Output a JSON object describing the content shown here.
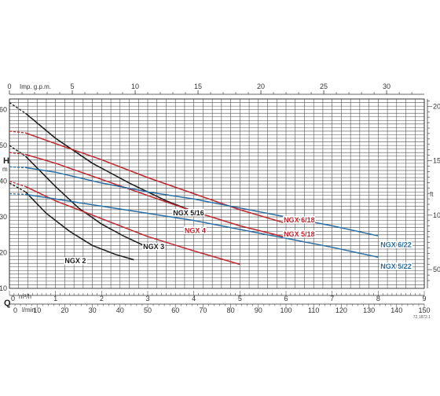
{
  "chart_data": {
    "type": "line",
    "title": "",
    "y_axis": {
      "symbol": "H",
      "unit": "m",
      "ticks": [
        10,
        20,
        30,
        40,
        50,
        60
      ],
      "range": [
        10,
        63
      ]
    },
    "y_axis_right": {
      "unit": "ft",
      "ticks": [
        50,
        100,
        150,
        200
      ]
    },
    "x_axis": {
      "symbol": "Q",
      "range_m3h": [
        0,
        9
      ],
      "m3h": {
        "unit": "m³/h",
        "ticks": [
          0,
          1,
          2,
          3,
          4,
          5,
          6,
          7,
          8,
          9
        ]
      },
      "lmin": {
        "unit": "l/min",
        "ticks": [
          0,
          10,
          20,
          30,
          40,
          50,
          60,
          70,
          80,
          90,
          100,
          110,
          120,
          130,
          140,
          150
        ]
      },
      "gpm": {
        "unit": "Imp. g.p.m.",
        "ticks": [
          0,
          5,
          10,
          15,
          20,
          25,
          30
        ]
      }
    },
    "reference_code": "72.1872.1",
    "series": [
      {
        "name": "NGX 2",
        "color": "#1a1a1a",
        "label_q": 1.2,
        "label_h": 17,
        "dashed": [
          [
            0,
            39.5
          ],
          [
            0.35,
            37
          ]
        ],
        "points": [
          [
            0.35,
            37
          ],
          [
            0.8,
            31
          ],
          [
            1.3,
            26
          ],
          [
            1.8,
            22
          ],
          [
            2.3,
            19.5
          ],
          [
            2.7,
            18
          ]
        ]
      },
      {
        "name": "NGX 3",
        "color": "#1a1a1a",
        "label_q": 2.9,
        "label_h": 21,
        "dashed": [
          [
            0,
            50
          ],
          [
            0.35,
            47
          ]
        ],
        "points": [
          [
            0.35,
            47
          ],
          [
            1,
            38.5
          ],
          [
            1.5,
            32.5
          ],
          [
            2,
            28
          ],
          [
            2.5,
            24.5
          ],
          [
            3,
            21.5
          ]
        ]
      },
      {
        "name": "NGX 4",
        "color": "#c0262d",
        "label_q": 3.8,
        "label_h": 25.5,
        "dashed": [
          [
            0,
            40
          ],
          [
            0.35,
            38.5
          ]
        ],
        "points": [
          [
            0.35,
            38.5
          ],
          [
            1,
            34.5
          ],
          [
            2,
            29.5
          ],
          [
            3,
            24.5
          ],
          [
            4,
            20.5
          ],
          [
            5,
            16.7
          ]
        ]
      },
      {
        "name": "NGX 5/16",
        "color": "#1a1a1a",
        "label_q": 3.55,
        "label_h": 30.5,
        "dashed": [
          [
            0,
            62
          ],
          [
            0.35,
            59
          ]
        ],
        "points": [
          [
            0.35,
            59
          ],
          [
            1,
            52
          ],
          [
            1.8,
            45
          ],
          [
            2.6,
            39.5
          ],
          [
            3.4,
            34.5
          ],
          [
            4.1,
            31
          ]
        ]
      },
      {
        "name": "NGX 6/18",
        "color": "#c0262d",
        "label_q": 5.95,
        "label_h": 28.5,
        "dashed": [
          [
            0,
            54
          ],
          [
            0.35,
            53.5
          ]
        ],
        "points": [
          [
            0.35,
            53.5
          ],
          [
            1,
            50.5
          ],
          [
            2,
            46
          ],
          [
            3,
            41
          ],
          [
            4,
            36.5
          ],
          [
            5,
            32
          ],
          [
            6,
            28.2
          ]
        ]
      },
      {
        "name": "NGX 5/18",
        "color": "#c0262d",
        "label_q": 5.95,
        "label_h": 24.5,
        "dashed": [
          [
            0,
            48
          ],
          [
            0.35,
            47.5
          ]
        ],
        "points": [
          [
            0.35,
            47.5
          ],
          [
            1,
            45
          ],
          [
            2,
            40.5
          ],
          [
            3,
            36
          ],
          [
            4,
            31.5
          ],
          [
            5,
            27.5
          ],
          [
            6,
            24.3
          ]
        ]
      },
      {
        "name": "NGX 6/22",
        "color": "#2a6ea4",
        "label_q": 8.05,
        "label_h": 21.5,
        "dashed": [
          [
            0,
            44
          ],
          [
            0.35,
            43.8
          ]
        ],
        "points": [
          [
            0.35,
            43.8
          ],
          [
            1,
            42.5
          ],
          [
            2,
            39.5
          ],
          [
            3,
            37
          ],
          [
            4,
            35
          ],
          [
            5,
            32.5
          ],
          [
            6,
            30
          ],
          [
            7,
            27.5
          ],
          [
            8,
            24.7
          ]
        ]
      },
      {
        "name": "NGX 5/22",
        "color": "#2a6ea4",
        "label_q": 8.05,
        "label_h": 15.5,
        "dashed": [
          [
            0,
            36.5
          ],
          [
            0.35,
            36.3
          ]
        ],
        "points": [
          [
            0.35,
            36.3
          ],
          [
            1,
            35
          ],
          [
            2,
            33
          ],
          [
            3,
            31
          ],
          [
            4,
            29
          ],
          [
            5,
            26.5
          ],
          [
            6,
            24
          ],
          [
            7,
            21.5
          ],
          [
            8,
            18.7
          ]
        ]
      }
    ]
  }
}
